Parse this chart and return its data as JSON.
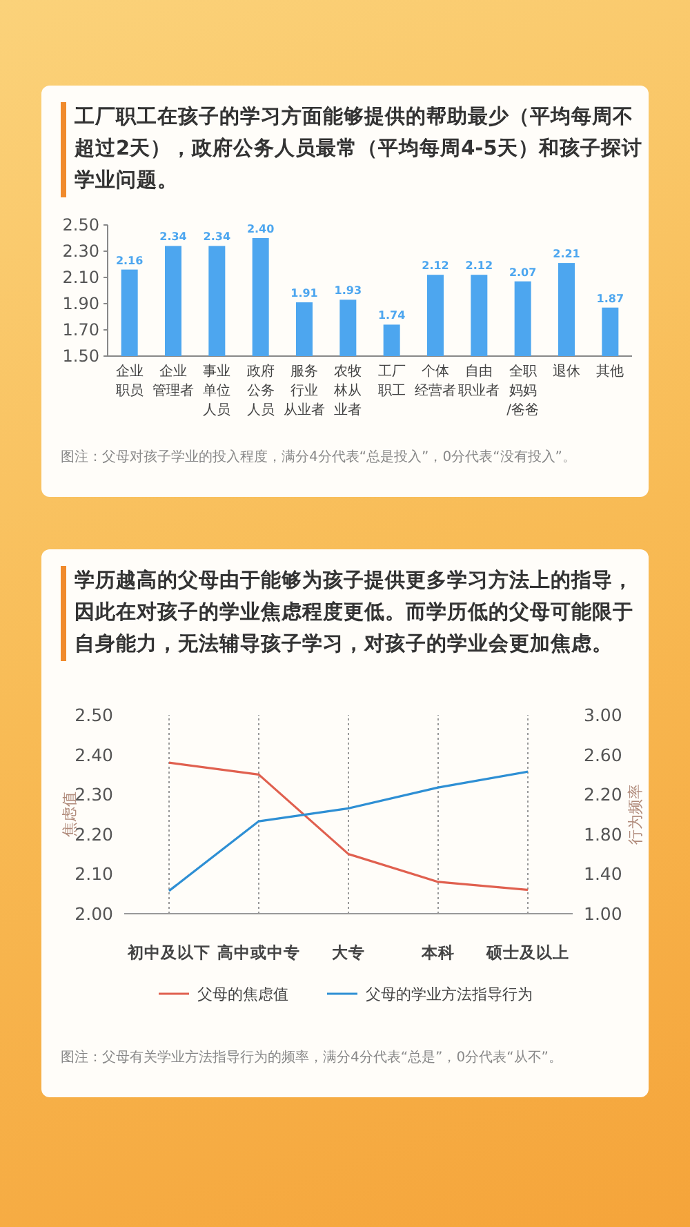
{
  "chart_data": [
    {
      "type": "bar",
      "title": "工厂职工在孩子的学习方面能够提供的帮助最少（平均每周不超过2天），政府公务人员最常（平均每周4-5天）和孩子探讨学业问题。",
      "categories": [
        "企业职员",
        "企业管理者",
        "事业单位人员",
        "政府公务人员",
        "服务行业从业者",
        "农牧林从业者",
        "工厂职工",
        "个体经营者",
        "自由职业者",
        "全职妈妈/爸爸",
        "退休",
        "其他"
      ],
      "values": [
        2.16,
        2.34,
        2.34,
        2.4,
        1.91,
        1.93,
        1.74,
        2.12,
        2.12,
        2.07,
        2.21,
        1.87
      ],
      "value_labels": [
        "2.16",
        "2.34",
        "2.34",
        "2.40",
        "1.91",
        "1.93",
        "1.74",
        "2.12",
        "2.12",
        "2.07",
        "2.21",
        "1.87"
      ],
      "color": "#4da6ef",
      "ylim": [
        1.5,
        2.5
      ],
      "yticks": [
        {
          "value": 1.5,
          "label": "1.50"
        },
        {
          "value": 1.7,
          "label": "1.70"
        },
        {
          "value": 1.9,
          "label": "1.90"
        },
        {
          "value": 2.1,
          "label": "2.10"
        },
        {
          "value": 2.3,
          "label": "2.30"
        },
        {
          "value": 2.5,
          "label": "2.50"
        }
      ],
      "annotations": [
        "图注：父母对孩子学业的投入程度，满分4分代表“总是投入”，0分代表“没有投入”。"
      ]
    },
    {
      "type": "line",
      "title": "学历越高的父母由于能够为孩子提供更多学习方法上的指导，因此在对孩子的学业焦虑程度更低。而学历低的父母可能限于自身能力，无法辅导孩子学习，对孩子的学业会更加焦虑。",
      "categories": [
        "初中及以下",
        "高中或中专",
        "大专",
        "本科",
        "硕士及以上"
      ],
      "series": [
        {
          "name": "父母的焦虑值",
          "color": "#e0604f",
          "values": [
            2.38,
            2.35,
            2.15,
            2.08,
            2.06
          ]
        },
        {
          "name": "父母的学业方法指导行为",
          "color": "#2e8fd4",
          "axis": "y2",
          "values": [
            1.23,
            1.93,
            2.06,
            2.27,
            2.43
          ]
        }
      ],
      "ylabel": "焦虑值",
      "y2label": "行为频率",
      "ylim": [
        2.0,
        2.5
      ],
      "yticks": [
        {
          "value": 2.0,
          "label": "2.00"
        },
        {
          "value": 2.1,
          "label": "2.10"
        },
        {
          "value": 2.2,
          "label": "2.20"
        },
        {
          "value": 2.3,
          "label": "2.30"
        },
        {
          "value": 2.4,
          "label": "2.40"
        },
        {
          "value": 2.5,
          "label": "2.50"
        }
      ],
      "y2lim": [
        1.0,
        3.0
      ],
      "y2ticks": [
        {
          "value": 1.0,
          "label": "1.00"
        },
        {
          "value": 1.4,
          "label": "1.40"
        },
        {
          "value": 1.8,
          "label": "1.80"
        },
        {
          "value": 2.2,
          "label": "2.20"
        },
        {
          "value": 2.6,
          "label": "2.60"
        },
        {
          "value": 3.0,
          "label": "3.00"
        }
      ],
      "grid": "x",
      "legend": "bottom",
      "annotations": [
        "图注：父母有关学业方法指导行为的频率，满分4分代表“总是”，0分代表“从不”。"
      ]
    }
  ]
}
